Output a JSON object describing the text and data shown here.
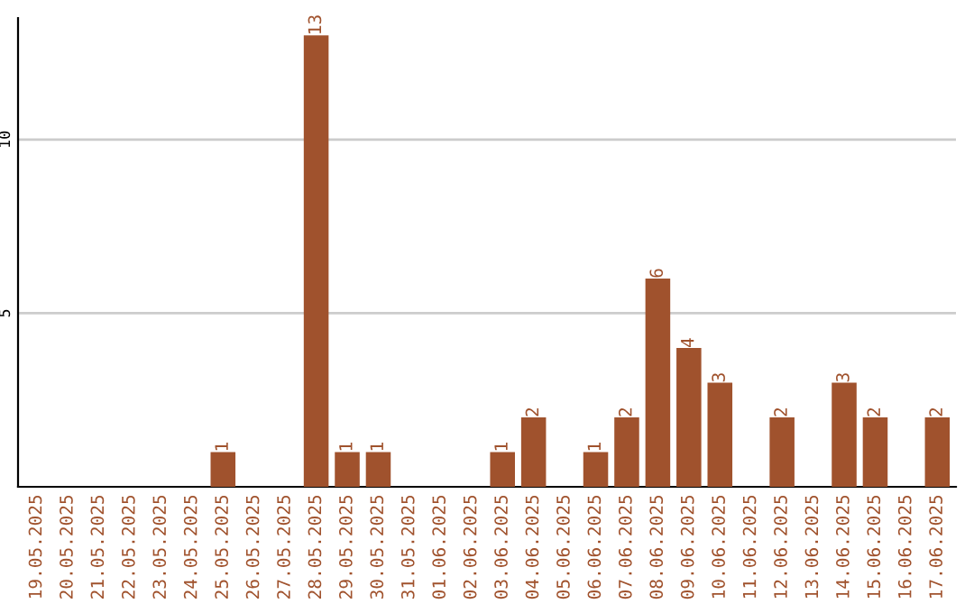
{
  "chart_data": {
    "type": "bar",
    "categories": [
      "19.05.2025",
      "20.05.2025",
      "21.05.2025",
      "22.05.2025",
      "23.05.2025",
      "24.05.2025",
      "25.05.2025",
      "26.05.2025",
      "27.05.2025",
      "28.05.2025",
      "29.05.2025",
      "30.05.2025",
      "31.05.2025",
      "01.06.2025",
      "02.06.2025",
      "03.06.2025",
      "04.06.2025",
      "05.06.2025",
      "06.06.2025",
      "07.06.2025",
      "08.06.2025",
      "09.06.2025",
      "10.06.2025",
      "11.06.2025",
      "12.06.2025",
      "13.06.2025",
      "14.06.2025",
      "15.06.2025",
      "16.06.2025",
      "17.06.2025"
    ],
    "values": [
      0,
      0,
      0,
      0,
      0,
      0,
      1,
      0,
      0,
      13,
      1,
      1,
      0,
      0,
      0,
      1,
      2,
      0,
      1,
      2,
      6,
      4,
      3,
      0,
      2,
      0,
      3,
      2,
      0,
      2
    ],
    "value_labels": [
      null,
      null,
      null,
      null,
      null,
      null,
      "1",
      null,
      null,
      "13",
      "1",
      "1",
      null,
      null,
      null,
      "1",
      "2",
      null,
      "1",
      "2",
      "6",
      "4",
      "3",
      null,
      "2",
      null,
      "3",
      "2",
      null,
      "2"
    ],
    "color": "#a0522d",
    "ylim": [
      0,
      13.5
    ],
    "yticks": [
      5,
      10
    ],
    "grid": "y"
  }
}
